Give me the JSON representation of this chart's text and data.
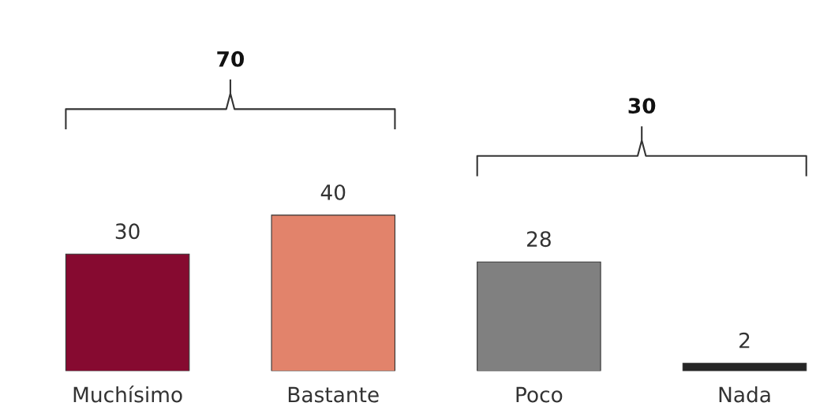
{
  "chart_data": {
    "type": "bar",
    "categories": [
      "Muchísimo",
      "Bastante",
      "Poco",
      "Nada"
    ],
    "values": [
      30,
      40,
      28,
      2
    ],
    "colors": [
      "#860a30",
      "#e2836b",
      "#808080",
      "#262626"
    ],
    "data_labels": true,
    "grid": false,
    "tick_labels": "x",
    "annotations": [
      "70",
      "30"
    ]
  }
}
